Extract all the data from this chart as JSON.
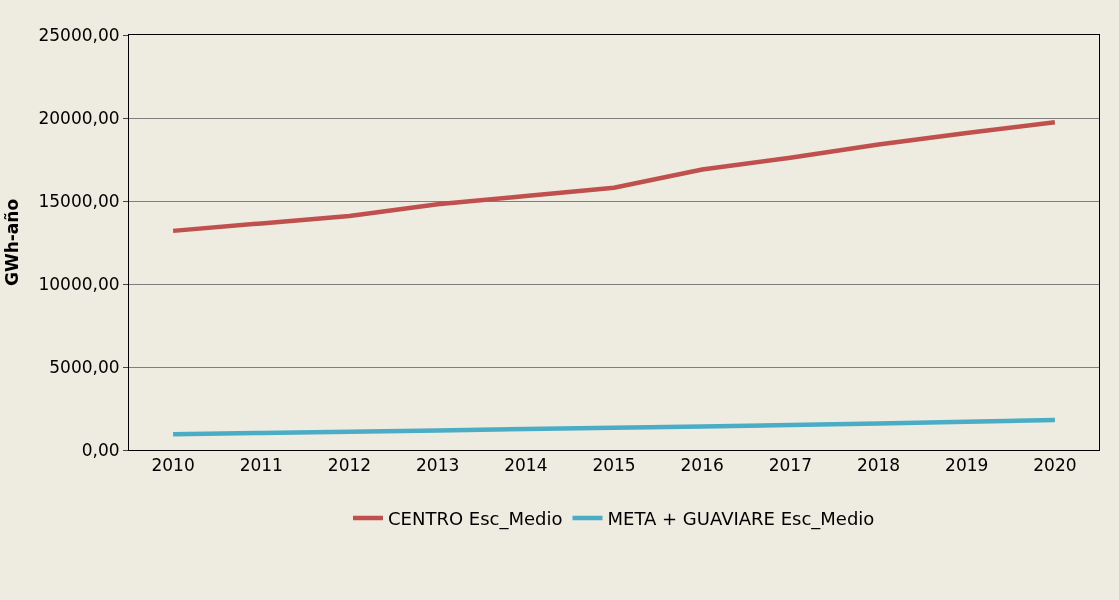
{
  "chart_data": {
    "type": "line",
    "ylabel": "GWh-año",
    "categories": [
      "2010",
      "2011",
      "2012",
      "2013",
      "2014",
      "2015",
      "2016",
      "2017",
      "2018",
      "2019",
      "2020"
    ],
    "series": [
      {
        "name": "CENTRO Esc_Medio",
        "color": "#c0504d",
        "values": [
          13200,
          13650,
          14100,
          14800,
          15300,
          15800,
          16900,
          17600,
          18400,
          19100,
          19750
        ]
      },
      {
        "name": "META + GUAVIARE Esc_Medio",
        "color": "#4bacc6",
        "values": [
          950,
          1030,
          1100,
          1180,
          1260,
          1340,
          1420,
          1500,
          1600,
          1700,
          1800
        ]
      }
    ],
    "ylim": [
      0,
      25000
    ],
    "yticks": [
      {
        "value": 0,
        "label": "0,00"
      },
      {
        "value": 5000,
        "label": "5000,00"
      },
      {
        "value": 10000,
        "label": "10000,00"
      },
      {
        "value": 15000,
        "label": "15000,00"
      },
      {
        "value": 20000,
        "label": "20000,00"
      },
      {
        "value": 25000,
        "label": "25000,00"
      }
    ],
    "grid": "y",
    "legend": "bottom",
    "marker": "none",
    "line_style": "solid"
  }
}
